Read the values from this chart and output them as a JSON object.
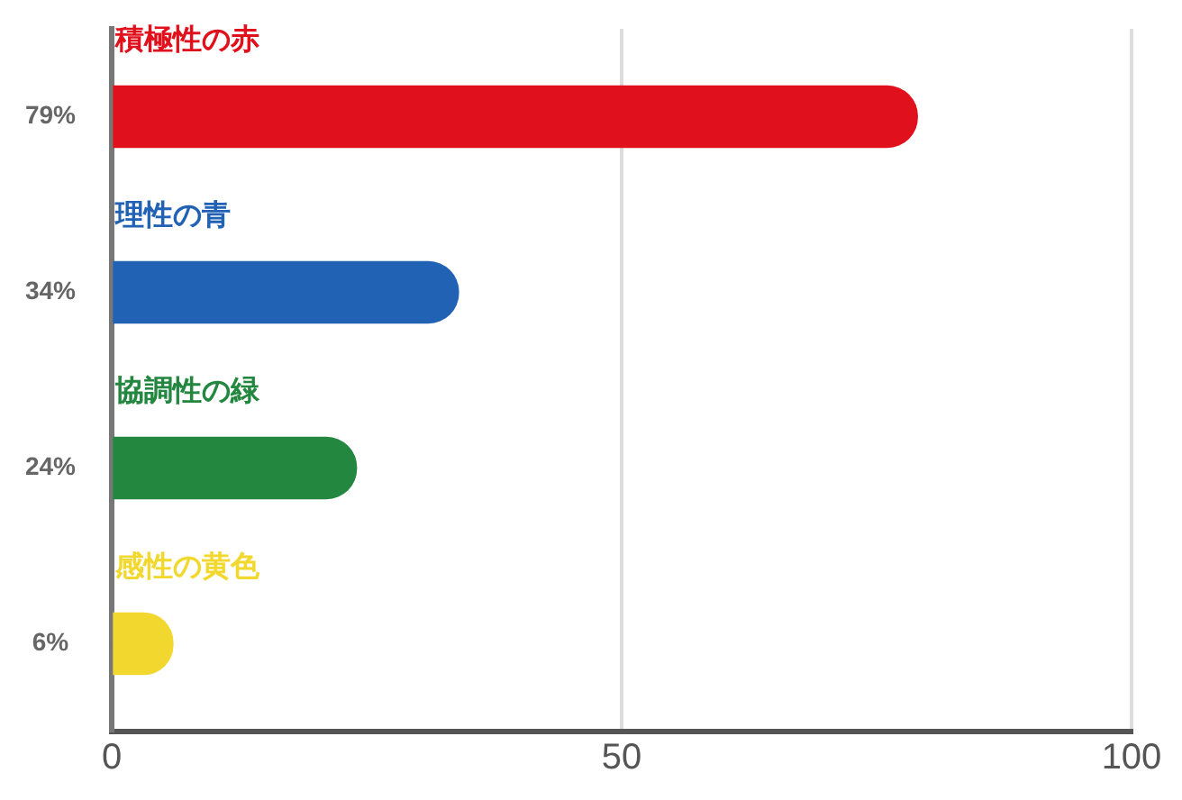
{
  "chart_data": {
    "type": "bar",
    "orientation": "horizontal",
    "categories": [
      "積極性の赤",
      "理性の青",
      "協調性の緑",
      "感性の黄色"
    ],
    "values": [
      79,
      34,
      24,
      6
    ],
    "colors": [
      "#e0101c",
      "#2262b4",
      "#23873f",
      "#f2d82e"
    ],
    "value_labels": [
      "79%",
      "34%",
      "24%",
      "6%"
    ],
    "xlim": [
      0,
      100
    ],
    "xticks": [
      0,
      50,
      100
    ],
    "grid": "x",
    "legend": false
  }
}
